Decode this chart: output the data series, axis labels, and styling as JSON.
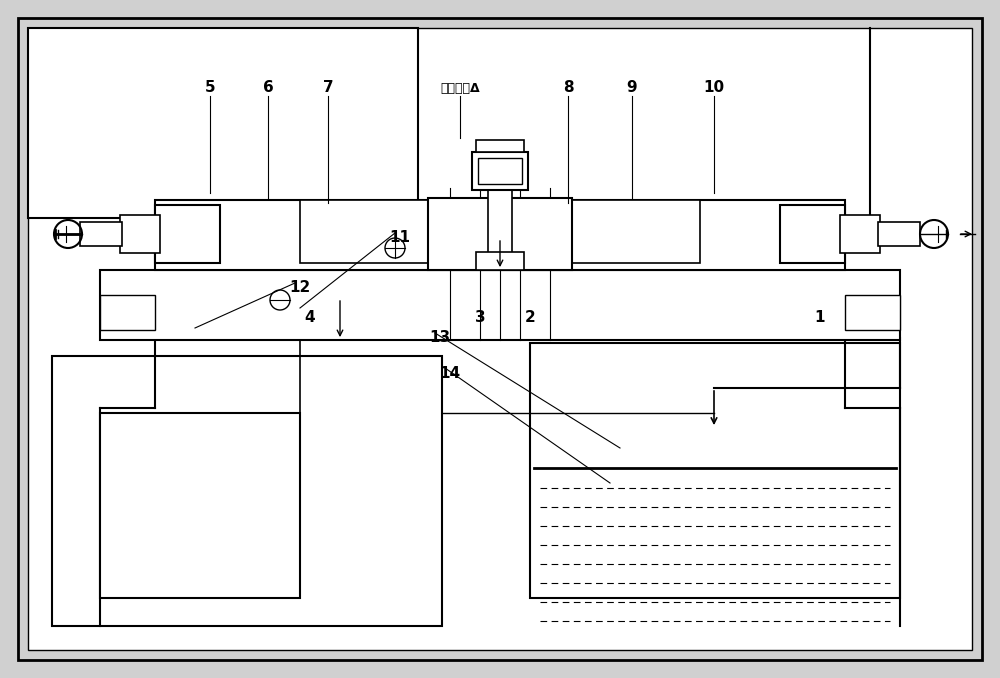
{
  "title_text": "加工间隙Δ",
  "fig_width": 10.0,
  "fig_height": 6.78,
  "bg_color": "#d8d8d8",
  "line_color": "#000000"
}
